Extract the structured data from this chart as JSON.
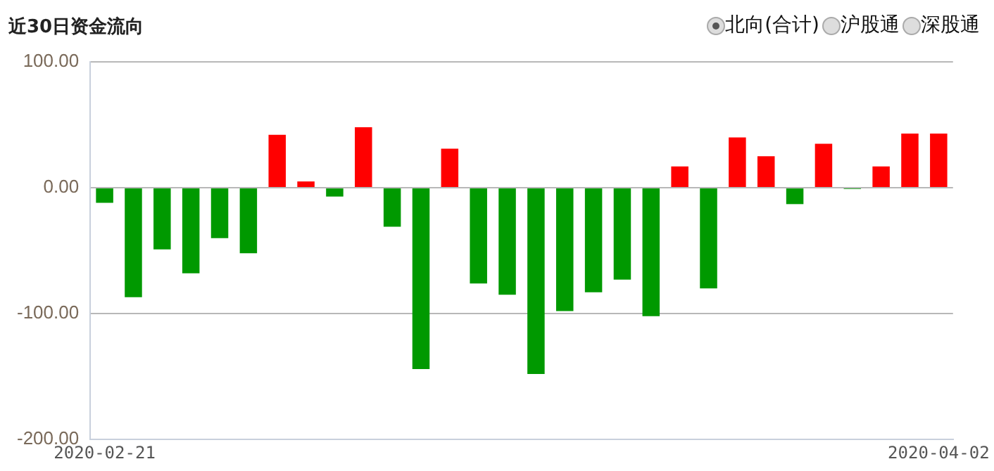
{
  "chart_data": {
    "type": "bar",
    "title": "近30日资金流向",
    "annotations": [
      "北向(合计)",
      "沪股通",
      "深股通"
    ],
    "categories": [
      "2020-02-21",
      null,
      null,
      null,
      null,
      null,
      null,
      null,
      null,
      null,
      null,
      null,
      null,
      null,
      null,
      null,
      null,
      null,
      null,
      null,
      null,
      null,
      null,
      null,
      null,
      null,
      null,
      null,
      null,
      "2020-04-02"
    ],
    "values": [
      -12,
      -87,
      -49,
      -68,
      -40,
      -52,
      42,
      5,
      -7,
      48,
      -31,
      -144,
      31,
      -76,
      -85,
      -148,
      -98,
      -83,
      -73,
      -102,
      17,
      -80,
      40,
      25,
      -13,
      35,
      -1,
      17,
      43,
      43
    ],
    "colors": [
      "#009900",
      "#009900",
      "#009900",
      "#009900",
      "#009900",
      "#009900",
      "#ff0000",
      "#ff0000",
      "#009900",
      "#ff0000",
      "#009900",
      "#009900",
      "#ff0000",
      "#009900",
      "#009900",
      "#009900",
      "#009900",
      "#009900",
      "#009900",
      "#009900",
      "#ff0000",
      "#009900",
      "#ff0000",
      "#ff0000",
      "#009900",
      "#ff0000",
      "#009900",
      "#ff0000",
      "#ff0000",
      "#ff0000"
    ],
    "ylim": [
      -200,
      100
    ],
    "yticks": [
      {
        "value": -200,
        "label": "-200.00"
      },
      {
        "value": -100,
        "label": "-100.00"
      },
      {
        "value": 0,
        "label": "0.00"
      },
      {
        "value": 100,
        "label": "100.00"
      }
    ],
    "grid": "y",
    "legend": false
  }
}
